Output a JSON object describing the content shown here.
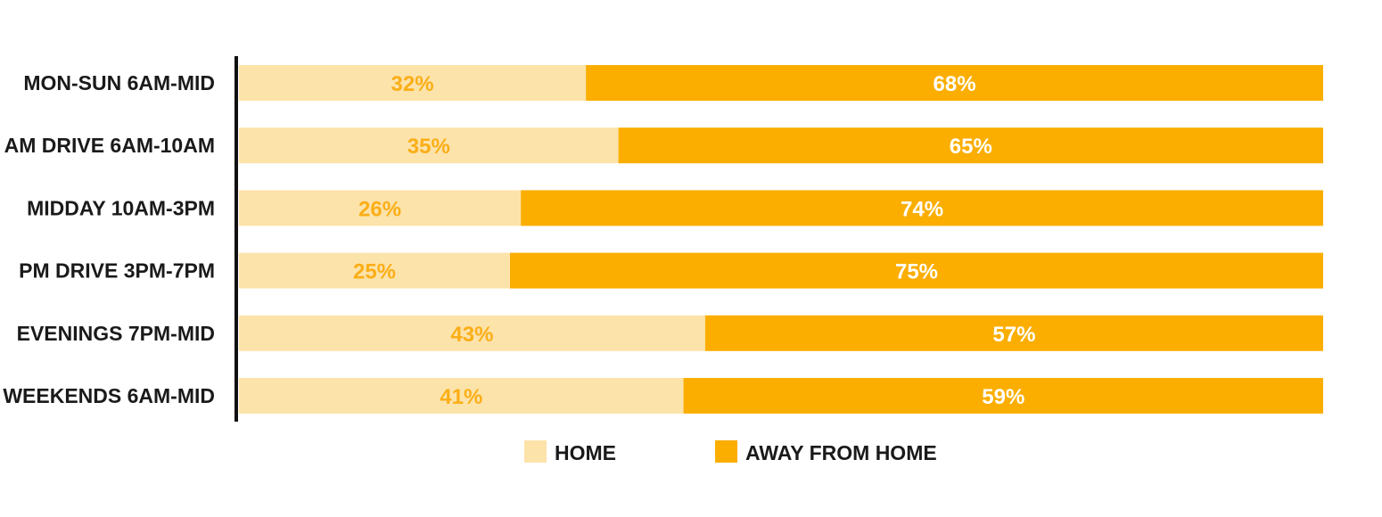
{
  "chart_data": {
    "type": "bar",
    "orientation": "horizontal",
    "stacked": true,
    "percent_stacked": true,
    "categories": [
      "MON-SUN 6AM-MID",
      "AM DRIVE 6AM-10AM",
      "MIDDAY 10AM-3PM",
      "PM DRIVE 3PM-7PM",
      "EVENINGS 7PM-MID",
      "WEEKENDS 6AM-MID"
    ],
    "series": [
      {
        "name": "HOME",
        "values": [
          32,
          35,
          26,
          25,
          43,
          41
        ],
        "labels": [
          "32%",
          "35%",
          "26%",
          "25%",
          "43%",
          "41%"
        ],
        "color": "#FCE3AA",
        "label_color": "#FBAE17"
      },
      {
        "name": "AWAY FROM HOME",
        "values": [
          68,
          65,
          74,
          75,
          57,
          59
        ],
        "labels": [
          "68%",
          "65%",
          "74%",
          "75%",
          "57%",
          "59%"
        ],
        "color": "#FBAE00",
        "label_color": "#FFFFFF"
      }
    ],
    "xlim": [
      0,
      100
    ],
    "grid": false,
    "legend": "bottom-center"
  }
}
